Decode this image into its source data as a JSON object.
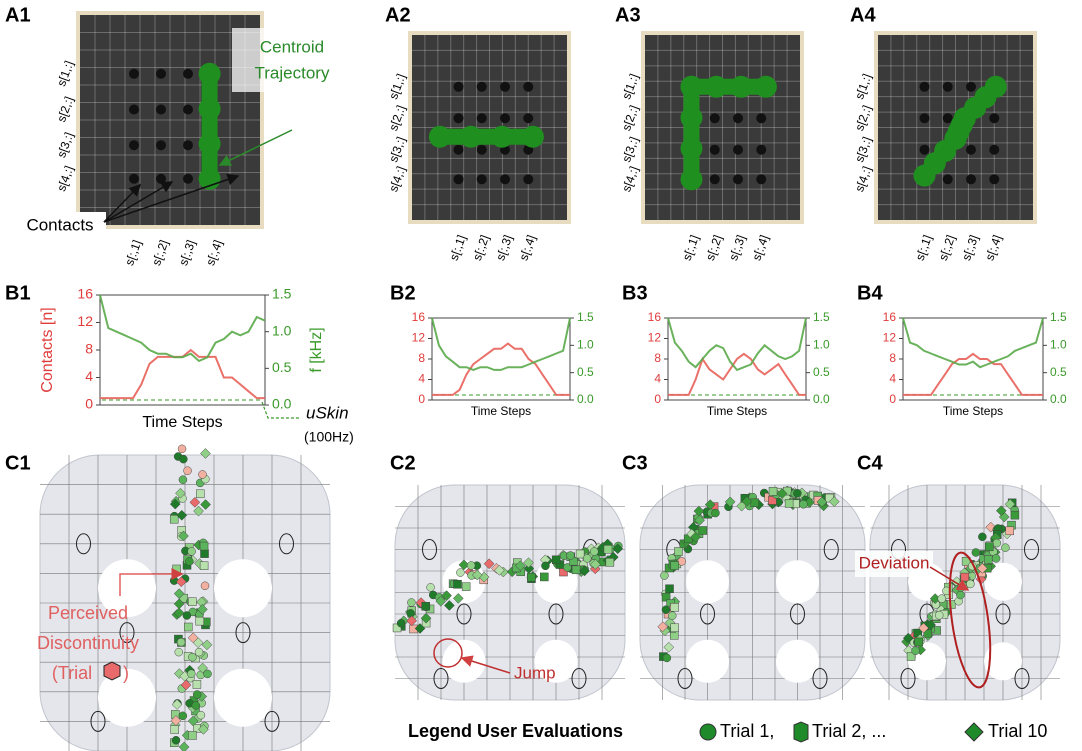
{
  "panel_labels": [
    "A1",
    "A2",
    "A3",
    "A4",
    "B1",
    "B2",
    "B3",
    "B4",
    "C1",
    "C2",
    "C3",
    "C4"
  ],
  "photo": {
    "row_labels": [
      "s[1,:]",
      "s[2,:]",
      "s[3,:]",
      "s[4,:]"
    ],
    "col_labels": [
      "s[:,1]",
      "s[:,2]",
      "s[:,3]",
      "s[:,4]"
    ],
    "centroid_label": [
      "Centroid",
      "Trajectory"
    ],
    "contacts_label": "Contacts"
  },
  "chart_data": [
    {
      "type": "line",
      "ylabel": "Contacts [n]",
      "y2label": "f [kHz]",
      "xlabel": "Time Steps",
      "ylim": [
        0,
        16
      ],
      "yticks": [
        0,
        4,
        8,
        12,
        16
      ],
      "y2lim": [
        0,
        1.5
      ],
      "y2ticks": [
        {
          "value": 0,
          "label": "0.0"
        },
        0.5,
        {
          "value": 1,
          "label": "1.0"
        },
        1.5
      ],
      "series": [
        {
          "color": "#e8605a",
          "values": [
            1,
            1,
            1,
            1,
            1,
            3,
            6,
            7,
            7,
            7,
            7,
            8,
            7,
            7,
            7,
            4,
            4,
            3,
            2,
            1,
            1
          ]
        },
        {
          "color": "#5aaa4a",
          "axis": "y2",
          "values": [
            1.5,
            1.05,
            1.0,
            0.95,
            0.9,
            0.85,
            0.75,
            0.7,
            0.7,
            0.65,
            0.65,
            0.7,
            0.6,
            0.65,
            0.85,
            0.9,
            1.0,
            0.95,
            1.0,
            1.2,
            1.15
          ]
        }
      ]
    },
    {
      "type": "line",
      "xlabel": "Time Steps",
      "ylim": [
        0,
        16
      ],
      "yticks": [
        0,
        4,
        8,
        12,
        16
      ],
      "y2lim": [
        0,
        1.5
      ],
      "y2ticks": [
        {
          "value": 0,
          "label": "0.0"
        },
        0.5,
        {
          "value": 1,
          "label": "1.0"
        },
        1.5
      ],
      "series": [
        {
          "color": "#e8605a",
          "values": [
            1,
            1,
            1,
            1,
            2,
            5,
            7,
            8,
            9,
            10,
            10,
            11,
            10,
            10,
            8,
            7,
            5,
            3,
            1,
            1,
            1
          ]
        },
        {
          "color": "#5aaa4a",
          "axis": "y2",
          "values": [
            1.5,
            1.0,
            0.8,
            0.7,
            0.6,
            0.6,
            0.55,
            0.6,
            0.6,
            0.55,
            0.55,
            0.6,
            0.6,
            0.6,
            0.65,
            0.7,
            0.75,
            0.8,
            0.85,
            0.9,
            1.5
          ]
        }
      ]
    },
    {
      "type": "line",
      "xlabel": "Time Steps",
      "ylim": [
        0,
        16
      ],
      "yticks": [
        0,
        4,
        8,
        12,
        16
      ],
      "y2lim": [
        0,
        1.5
      ],
      "y2ticks": [
        {
          "value": 0,
          "label": "0.0"
        },
        0.5,
        {
          "value": 1,
          "label": "1.0"
        },
        1.5
      ],
      "series": [
        {
          "color": "#e8605a",
          "values": [
            1,
            1,
            1,
            1,
            4,
            8,
            6,
            5,
            4,
            6,
            8,
            9,
            8,
            6,
            5,
            6,
            7,
            5,
            3,
            1,
            1
          ]
        },
        {
          "color": "#5aaa4a",
          "axis": "y2",
          "values": [
            1.5,
            1.05,
            0.9,
            0.7,
            0.6,
            0.75,
            0.9,
            1.0,
            0.95,
            0.7,
            0.55,
            0.6,
            0.65,
            0.85,
            1.0,
            0.9,
            0.8,
            0.75,
            0.8,
            0.9,
            1.5
          ]
        }
      ]
    },
    {
      "type": "line",
      "xlabel": "Time Steps",
      "ylim": [
        0,
        16
      ],
      "yticks": [
        0,
        4,
        8,
        12,
        16
      ],
      "y2lim": [
        0,
        1.5
      ],
      "y2ticks": [
        {
          "value": 0,
          "label": "0.0"
        },
        0.5,
        {
          "value": 1,
          "label": "1.0"
        },
        1.5
      ],
      "series": [
        {
          "color": "#e8605a",
          "values": [
            1,
            1,
            1,
            1,
            1,
            3,
            5,
            7,
            8,
            8,
            9,
            8,
            8,
            7,
            7,
            5,
            3,
            1,
            1,
            1,
            1
          ]
        },
        {
          "color": "#5aaa4a",
          "axis": "y2",
          "values": [
            1.5,
            1.05,
            1.0,
            0.9,
            0.85,
            0.8,
            0.75,
            0.7,
            0.65,
            0.65,
            0.7,
            0.6,
            0.65,
            0.7,
            0.75,
            0.8,
            0.9,
            0.95,
            1.0,
            1.05,
            1.5
          ]
        }
      ]
    }
  ],
  "annotations": {
    "uskin": "uSkin",
    "uskin_rate": "(100Hz)",
    "discontinuity": [
      "Perceived",
      "Discontinuity",
      "(Trial",
      ")"
    ],
    "jump": "Jump",
    "deviation": "Deviation"
  },
  "legend": {
    "title": "Legend User Evaluations",
    "items": [
      "Trial 1,",
      "Trial 2, ...",
      "Trial 10"
    ]
  }
}
